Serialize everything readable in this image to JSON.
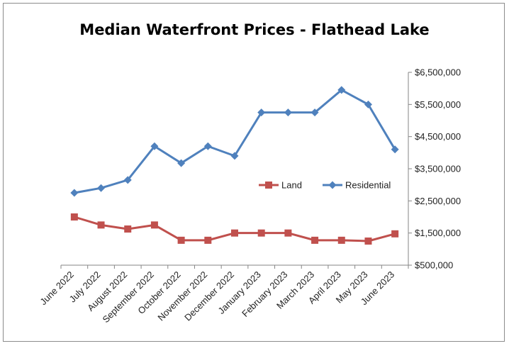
{
  "chart_data": {
    "type": "line",
    "title": "Median Waterfront Prices - Flathead Lake",
    "xlabel": "",
    "ylabel": "",
    "categories": [
      "June 2022",
      "July 2022",
      "August 2022",
      "September 2022",
      "October 2022",
      "November 2022",
      "December 2022",
      "January 2023",
      "February 2023",
      "March 2023",
      "April 2023",
      "May 2023",
      "June 2023"
    ],
    "ylim": [
      500000,
      6500000
    ],
    "yticks": [
      500000,
      1500000,
      2500000,
      3500000,
      4500000,
      5500000,
      6500000
    ],
    "ytick_labels": [
      "$500,000",
      "$1,500,000",
      "$2,500,000",
      "$3,500,000",
      "$4,500,000",
      "$5,500,000",
      "$6,500,000"
    ],
    "grid": false,
    "legend_position": "center-right",
    "series": [
      {
        "name": "Land",
        "color": "#c0504d",
        "marker": "square",
        "values": [
          2000000,
          1750000,
          1625000,
          1750000,
          1275000,
          1275000,
          1500000,
          1500000,
          1500000,
          1275000,
          1275000,
          1250000,
          1475000
        ]
      },
      {
        "name": "Residential",
        "color": "#4f81bd",
        "marker": "diamond",
        "values": [
          2750000,
          2900000,
          3150000,
          4200000,
          3675000,
          4200000,
          3900000,
          5250000,
          5250000,
          5250000,
          5950000,
          5500000,
          4100000
        ]
      }
    ]
  }
}
